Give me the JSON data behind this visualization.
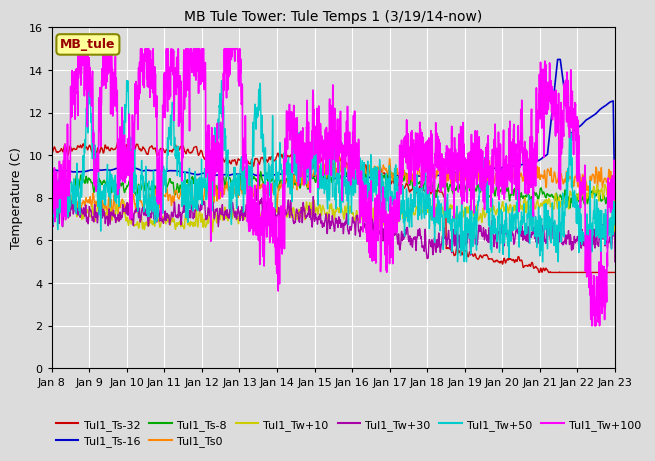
{
  "title": "MB Tule Tower: Tule Temps 1 (3/19/14-now)",
  "ylabel": "Temperature (C)",
  "ylim": [
    0,
    16
  ],
  "yticks": [
    0,
    2,
    4,
    6,
    8,
    10,
    12,
    14,
    16
  ],
  "xlim": [
    0,
    15
  ],
  "xtick_labels": [
    "Jan 8",
    "Jan 9",
    "Jan 10",
    "Jan 11",
    "Jan 12",
    "Jan 13",
    "Jan 14",
    "Jan 15",
    "Jan 16",
    "Jan 17",
    "Jan 18",
    "Jan 19",
    "Jan 20",
    "Jan 21",
    "Jan 22",
    "Jan 23"
  ],
  "legend_label": "MB_tule",
  "series_order": [
    "Tul1_Ts-32",
    "Tul1_Ts-16",
    "Tul1_Ts-8",
    "Tul1_Ts0",
    "Tul1_Tw+10",
    "Tul1_Tw+30",
    "Tul1_Tw+50",
    "Tul1_Tw+100"
  ],
  "series": {
    "Tul1_Ts-32": {
      "color": "#cc0000",
      "lw": 1.0
    },
    "Tul1_Ts-16": {
      "color": "#0000cc",
      "lw": 1.2
    },
    "Tul1_Ts-8": {
      "color": "#00aa00",
      "lw": 1.0
    },
    "Tul1_Ts0": {
      "color": "#ff8800",
      "lw": 1.0
    },
    "Tul1_Tw+10": {
      "color": "#cccc00",
      "lw": 1.0
    },
    "Tul1_Tw+30": {
      "color": "#aa00aa",
      "lw": 1.0
    },
    "Tul1_Tw+50": {
      "color": "#00cccc",
      "lw": 1.0
    },
    "Tul1_Tw+100": {
      "color": "#ff00ff",
      "lw": 1.2
    }
  },
  "bg_color": "#dcdcdc",
  "fig_color": "#dcdcdc"
}
